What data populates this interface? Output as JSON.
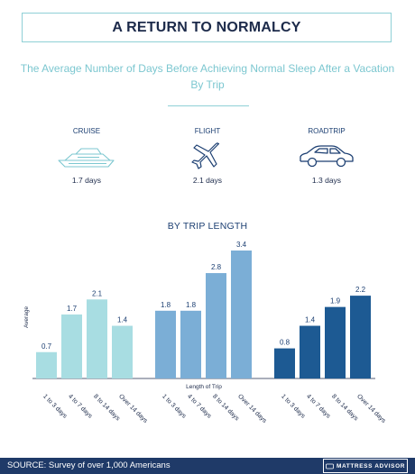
{
  "header": {
    "title": "A RETURN TO NORMALCY"
  },
  "subtitle": {
    "line1": "The Average Number of Days Before Achieving Normal Sleep After a Vacation",
    "line2": "By Trip"
  },
  "modes": [
    {
      "label": "CRUISE",
      "value": "1.7 days",
      "icon": "cruise-ship-icon"
    },
    {
      "label": "FLIGHT",
      "value": "2.1 days",
      "icon": "airplane-icon"
    },
    {
      "label": "ROADTRIP",
      "value": "1.3 days",
      "icon": "car-icon"
    }
  ],
  "section": {
    "title": "BY TRIP LENGTH"
  },
  "footer": {
    "source": "SOURCE: Survey of over 1,000 Americans",
    "brand": "MATTRESS ADVISOR"
  },
  "chart_data": {
    "type": "bar",
    "title": "BY TRIP LENGTH",
    "ylabel": "Average",
    "xlabel": "Length of Trip",
    "categories": [
      "1 to 3 days",
      "4 to 7 days",
      "8 to 14 days",
      "Over 14 days"
    ],
    "ylim": [
      0,
      3.4
    ],
    "grid": false,
    "data_labels": true,
    "groups": [
      {
        "color": "#a8dde2",
        "values": [
          0.7,
          1.7,
          2.1,
          1.4
        ]
      },
      {
        "color": "#7baed6",
        "values": [
          1.8,
          1.8,
          2.8,
          3.4
        ]
      },
      {
        "color": "#1d5a93",
        "values": [
          0.8,
          1.4,
          1.9,
          2.2
        ]
      }
    ],
    "label_color": "#1c3f72"
  }
}
